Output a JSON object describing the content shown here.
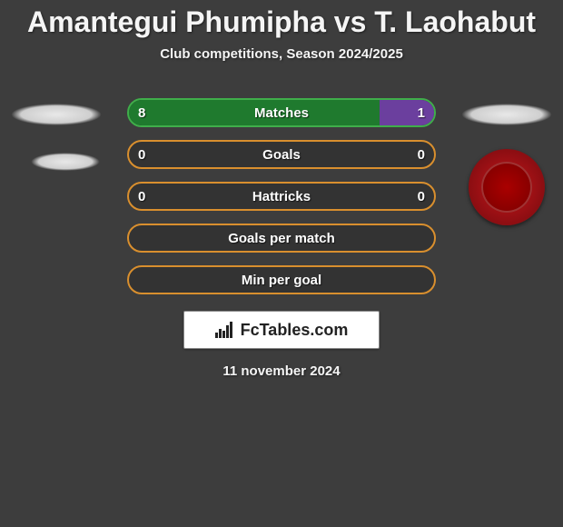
{
  "title": "Amantegui Phumipha vs T. Laohabut",
  "subtitle": "Club competitions, Season 2024/2025",
  "date": "11 november 2024",
  "branding": "FcTables.com",
  "colors": {
    "background": "#3d3d3d",
    "green_fill": "#1f7a2e",
    "green_border": "#3fae4a",
    "purple_fill": "#6b3f9e",
    "orange_border": "#d98f2e",
    "text": "#ffffff"
  },
  "stats": [
    {
      "label": "Matches",
      "left_value": "8",
      "right_value": "1",
      "left_ratio": 0.82,
      "right_ratio": 0.18,
      "left_color": "#1f7a2e",
      "right_color": "#6b3f9e",
      "border_color": "#3fae4a",
      "show_values": true
    },
    {
      "label": "Goals",
      "left_value": "0",
      "right_value": "0",
      "left_ratio": 0,
      "right_ratio": 0,
      "left_color": "transparent",
      "right_color": "transparent",
      "border_color": "#d98f2e",
      "show_values": true
    },
    {
      "label": "Hattricks",
      "left_value": "0",
      "right_value": "0",
      "left_ratio": 0,
      "right_ratio": 0,
      "left_color": "transparent",
      "right_color": "transparent",
      "border_color": "#d98f2e",
      "show_values": true
    },
    {
      "label": "Goals per match",
      "left_value": "",
      "right_value": "",
      "left_ratio": 0,
      "right_ratio": 0,
      "left_color": "transparent",
      "right_color": "transparent",
      "border_color": "#d98f2e",
      "show_values": false
    },
    {
      "label": "Min per goal",
      "left_value": "",
      "right_value": "",
      "left_ratio": 0,
      "right_ratio": 0,
      "left_color": "transparent",
      "right_color": "transparent",
      "border_color": "#d98f2e",
      "show_values": false
    }
  ]
}
